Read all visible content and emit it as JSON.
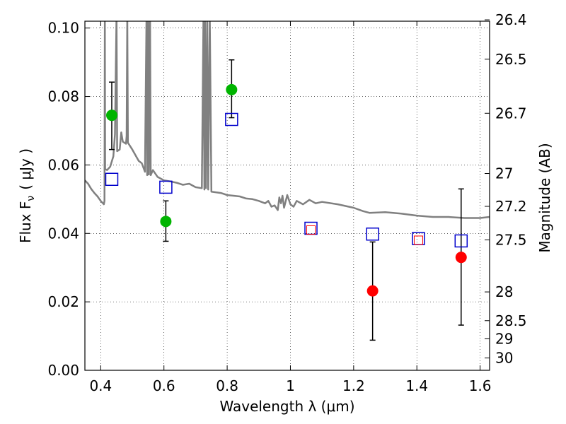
{
  "chart_data": {
    "type": "scatter",
    "xlabel": "Wavelength  λ (μm)",
    "ylabel": "Flux  F",
    "ylabel_sub": "ν",
    "ylabel_unit": "( μJy )",
    "y2label": "Magnitude (AB)",
    "xlim": [
      0.35,
      1.63
    ],
    "ylim": [
      0.0,
      0.102
    ],
    "grid": true,
    "x_ticks": [
      {
        "value": 0.4,
        "label": "0.4"
      },
      {
        "value": 0.6,
        "label": "0.6"
      },
      {
        "value": 0.8,
        "label": "0.8"
      },
      {
        "value": 1.0,
        "label": "1"
      },
      {
        "value": 1.2,
        "label": "1.2"
      },
      {
        "value": 1.4,
        "label": "1.4"
      },
      {
        "value": 1.6,
        "label": "1.6"
      }
    ],
    "y_ticks": [
      {
        "value": 0.0,
        "label": "0.00"
      },
      {
        "value": 0.02,
        "label": "0.02"
      },
      {
        "value": 0.04,
        "label": "0.04"
      },
      {
        "value": 0.06,
        "label": "0.06"
      },
      {
        "value": 0.08,
        "label": "0.08"
      },
      {
        "value": 0.1,
        "label": "0.10"
      }
    ],
    "y2_ticks": [
      {
        "flux": 0.1024,
        "label": "26.4"
      },
      {
        "flux": 0.0909,
        "label": "26.5"
      },
      {
        "flux": 0.0751,
        "label": "26.7"
      },
      {
        "flux": 0.0575,
        "label": "27"
      },
      {
        "flux": 0.0479,
        "label": "27.2"
      },
      {
        "flux": 0.0381,
        "label": "27.5"
      },
      {
        "flux": 0.0229,
        "label": "28"
      },
      {
        "flux": 0.0145,
        "label": "28.5"
      },
      {
        "flux": 0.0092,
        "label": "29"
      },
      {
        "flux": 0.0036,
        "label": "30"
      }
    ],
    "spectrum": {
      "color": "#808080",
      "points": [
        [
          0.35,
          0.0555
        ],
        [
          0.36,
          0.0545
        ],
        [
          0.37,
          0.053
        ],
        [
          0.38,
          0.0518
        ],
        [
          0.39,
          0.0508
        ],
        [
          0.4,
          0.0495
        ],
        [
          0.405,
          0.049
        ],
        [
          0.41,
          0.0485
        ],
        [
          0.412,
          0.0495
        ],
        [
          0.413,
          0.104
        ],
        [
          0.414,
          0.0588
        ],
        [
          0.42,
          0.0585
        ],
        [
          0.43,
          0.0595
        ],
        [
          0.44,
          0.0625
        ],
        [
          0.445,
          0.069
        ],
        [
          0.45,
          0.104
        ],
        [
          0.452,
          0.064
        ],
        [
          0.46,
          0.0645
        ],
        [
          0.465,
          0.0695
        ],
        [
          0.47,
          0.0668
        ],
        [
          0.48,
          0.0662
        ],
        [
          0.482,
          0.0685
        ],
        [
          0.484,
          0.104
        ],
        [
          0.486,
          0.0665
        ],
        [
          0.5,
          0.0645
        ],
        [
          0.52,
          0.0612
        ],
        [
          0.53,
          0.0605
        ],
        [
          0.54,
          0.058
        ],
        [
          0.545,
          0.104
        ],
        [
          0.547,
          0.057
        ],
        [
          0.55,
          0.104
        ],
        [
          0.552,
          0.0572
        ],
        [
          0.556,
          0.104
        ],
        [
          0.558,
          0.057
        ],
        [
          0.565,
          0.0585
        ],
        [
          0.58,
          0.0565
        ],
        [
          0.6,
          0.0555
        ],
        [
          0.62,
          0.0552
        ],
        [
          0.64,
          0.0548
        ],
        [
          0.66,
          0.0542
        ],
        [
          0.68,
          0.0545
        ],
        [
          0.7,
          0.0535
        ],
        [
          0.72,
          0.0532
        ],
        [
          0.725,
          0.104
        ],
        [
          0.728,
          0.0528
        ],
        [
          0.73,
          0.104
        ],
        [
          0.733,
          0.0532
        ],
        [
          0.737,
          0.104
        ],
        [
          0.74,
          0.0528
        ],
        [
          0.745,
          0.104
        ],
        [
          0.75,
          0.0522
        ],
        [
          0.78,
          0.0518
        ],
        [
          0.8,
          0.0512
        ],
        [
          0.84,
          0.0508
        ],
        [
          0.86,
          0.0502
        ],
        [
          0.88,
          0.05
        ],
        [
          0.9,
          0.0495
        ],
        [
          0.92,
          0.0488
        ],
        [
          0.93,
          0.0495
        ],
        [
          0.94,
          0.0478
        ],
        [
          0.95,
          0.0482
        ],
        [
          0.96,
          0.0468
        ],
        [
          0.965,
          0.0505
        ],
        [
          0.97,
          0.0488
        ],
        [
          0.975,
          0.051
        ],
        [
          0.98,
          0.0475
        ],
        [
          0.99,
          0.0512
        ],
        [
          1.0,
          0.0485
        ],
        [
          1.01,
          0.0478
        ],
        [
          1.02,
          0.0495
        ],
        [
          1.04,
          0.0485
        ],
        [
          1.06,
          0.0498
        ],
        [
          1.08,
          0.0488
        ],
        [
          1.1,
          0.0492
        ],
        [
          1.15,
          0.0485
        ],
        [
          1.2,
          0.0475
        ],
        [
          1.23,
          0.0465
        ],
        [
          1.25,
          0.046
        ],
        [
          1.3,
          0.0462
        ],
        [
          1.35,
          0.0458
        ],
        [
          1.4,
          0.0452
        ],
        [
          1.45,
          0.0448
        ],
        [
          1.5,
          0.0448
        ],
        [
          1.55,
          0.0445
        ],
        [
          1.58,
          0.0445
        ],
        [
          1.6,
          0.0445
        ],
        [
          1.63,
          0.0448
        ]
      ]
    },
    "model_photometry": {
      "marker": "open-square",
      "color": "#0000cc",
      "points": [
        {
          "x": 0.435,
          "y": 0.0558
        },
        {
          "x": 0.606,
          "y": 0.0535
        },
        {
          "x": 0.814,
          "y": 0.0733
        },
        {
          "x": 1.065,
          "y": 0.0415
        },
        {
          "x": 1.26,
          "y": 0.0398
        },
        {
          "x": 1.405,
          "y": 0.0385
        },
        {
          "x": 1.54,
          "y": 0.0378
        }
      ]
    },
    "detections": {
      "marker": "filled-circle",
      "color": "#00b400",
      "points": [
        {
          "x": 0.435,
          "y": 0.0745,
          "yerr_low": 0.0645,
          "yerr_high": 0.0842
        },
        {
          "x": 0.606,
          "y": 0.0435,
          "yerr_low": 0.0377,
          "yerr_high": 0.0495
        },
        {
          "x": 0.814,
          "y": 0.082,
          "yerr_low": 0.0738,
          "yerr_high": 0.0907
        }
      ]
    },
    "nondetections": {
      "marker": "filled-circle",
      "color": "#ff0000",
      "points": [
        {
          "x": 1.065,
          "y": 0.041,
          "small": true
        },
        {
          "x": 1.26,
          "y": 0.0232,
          "yerr_low": 0.0088,
          "yerr_high": 0.0375
        },
        {
          "x": 1.405,
          "y": 0.038,
          "small": true
        },
        {
          "x": 1.54,
          "y": 0.033,
          "yerr_low": 0.0132,
          "yerr_high": 0.053
        }
      ]
    }
  }
}
